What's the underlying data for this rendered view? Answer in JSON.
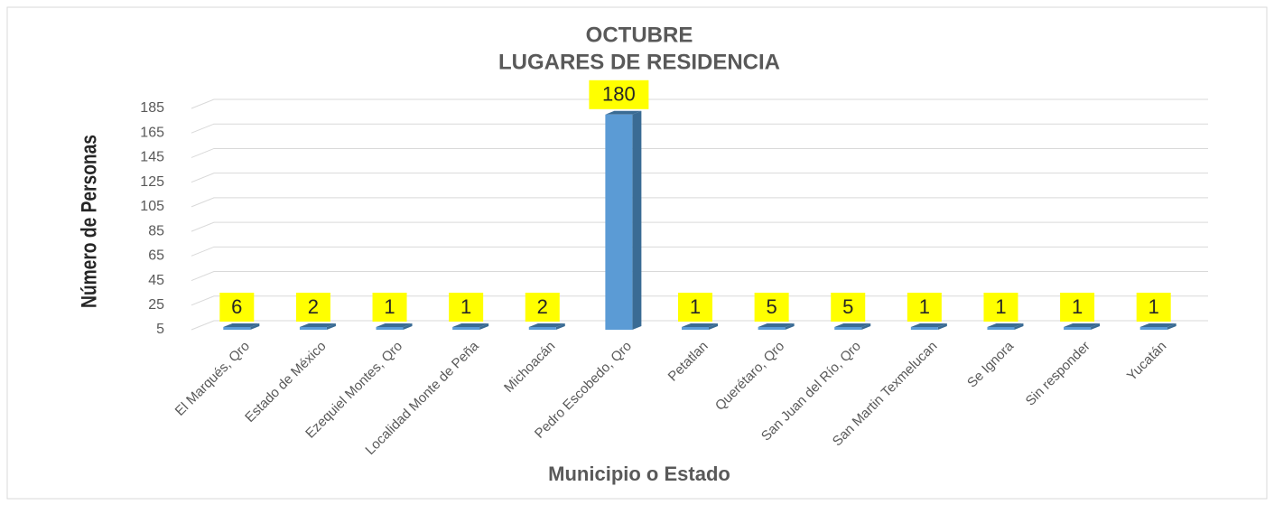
{
  "chart_data": {
    "type": "bar3d",
    "title": "OCTUBRE",
    "subtitle": "LUGARES DE RESIDENCIA",
    "x_label": "Municipio o Estado",
    "y_label": "Número de Personas",
    "categories": [
      "El Marqués, Qro",
      "Estado de México",
      "Ezequiel Montes, Qro",
      "Localidad Monte de Peña",
      "Michoacán",
      "Pedro Escobedo, Qro",
      "Petatlan",
      "Querétaro, Qro",
      "San Juan del Río, Qro",
      "San Martin Texmelucan",
      "Se Ignora",
      "Sin responder",
      "Yucatán"
    ],
    "values": [
      6,
      2,
      1,
      1,
      2,
      180,
      1,
      5,
      5,
      1,
      1,
      1,
      1
    ],
    "color": "#5b9bd5",
    "side_color": "#3a6b94",
    "label_background": "#ffff00",
    "ylim": [
      5,
      185
    ],
    "yticks": [
      5,
      25,
      45,
      65,
      85,
      105,
      125,
      145,
      165,
      185
    ],
    "grid": true
  }
}
